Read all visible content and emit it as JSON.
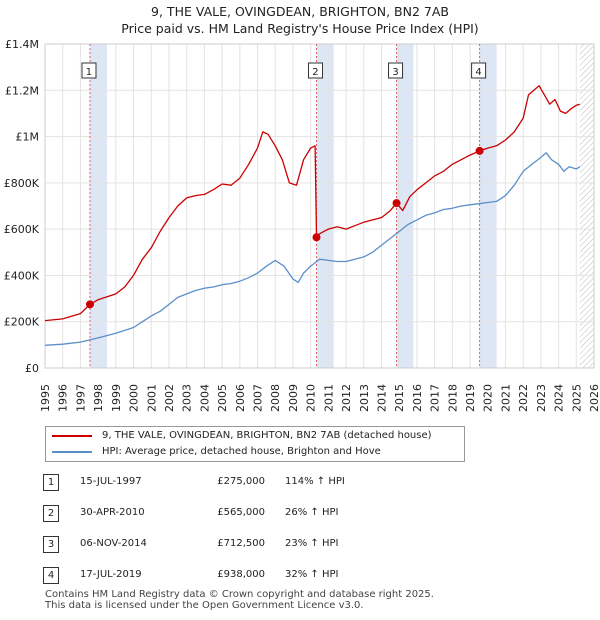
{
  "title_line1": "9, THE VALE, OVINGDEAN, BRIGHTON, BN2 7AB",
  "title_line2": "Price paid vs. HM Land Registry's House Price Index (HPI)",
  "legend": {
    "property_label": "9, THE VALE, OVINGDEAN, BRIGHTON, BN2 7AB (detached house)",
    "hpi_label": "HPI: Average price, detached house, Brighton and Hove"
  },
  "sales": [
    {
      "num": "1",
      "date": "15-JUL-1997",
      "price": "£275,000",
      "hpi": "114% ↑ HPI",
      "x": 1997.54,
      "y": 275000
    },
    {
      "num": "2",
      "date": "30-APR-2010",
      "price": "£565,000",
      "hpi": "26% ↑ HPI",
      "x": 2010.33,
      "y": 565000
    },
    {
      "num": "3",
      "date": "06-NOV-2014",
      "price": "£712,500",
      "hpi": "23% ↑ HPI",
      "x": 2014.85,
      "y": 712500
    },
    {
      "num": "4",
      "date": "17-JUL-2019",
      "price": "£938,000",
      "hpi": "32% ↑ HPI",
      "x": 2019.54,
      "y": 938000
    }
  ],
  "footer_line1": "Contains HM Land Registry data © Crown copyright and database right 2025.",
  "footer_line2": "This data is licensed under the Open Government Licence v3.0.",
  "colors": {
    "property": "#cc0000",
    "hpi": "#5b8fc9",
    "shade": "#dce6f5",
    "marker_line": "#e06060"
  },
  "chart_data": {
    "type": "line",
    "title": "9, THE VALE, OVINGDEAN, BRIGHTON, BN2 7AB",
    "subtitle": "Price paid vs. HM Land Registry's House Price Index (HPI)",
    "xlim": [
      1995,
      2026
    ],
    "ylim": [
      0,
      1400000
    ],
    "x_ticks": [
      1995,
      1996,
      1997,
      1998,
      1999,
      2000,
      2001,
      2002,
      2003,
      2004,
      2005,
      2006,
      2007,
      2008,
      2009,
      2010,
      2011,
      2012,
      2013,
      2014,
      2015,
      2016,
      2017,
      2018,
      2019,
      2020,
      2021,
      2022,
      2023,
      2024,
      2025,
      2026
    ],
    "y_ticks": [
      0,
      200000,
      400000,
      600000,
      800000,
      1000000,
      1200000,
      1400000
    ],
    "y_tick_labels": [
      "£0",
      "£200K",
      "£400K",
      "£600K",
      "£800K",
      "£1M",
      "£1.2M",
      "£1.4M"
    ],
    "shaded_spans": [
      [
        1997.54,
        1998.5
      ],
      [
        2010.33,
        2011.3
      ],
      [
        2014.85,
        2015.8
      ],
      [
        2019.54,
        2020.5
      ]
    ],
    "hatched_from": 2025.2,
    "series": [
      {
        "name": "9, THE VALE, OVINGDEAN, BRIGHTON, BN2 7AB (detached house)",
        "color": "#cc0000",
        "x": [
          1995,
          1996,
          1997,
          1997.54,
          1998,
          1999,
          1999.5,
          2000,
          2000.5,
          2001,
          2001.5,
          2002,
          2002.5,
          2003,
          2003.5,
          2004,
          2004.5,
          2005,
          2005.5,
          2006,
          2006.5,
          2007,
          2007.3,
          2007.6,
          2008,
          2008.4,
          2008.8,
          2009.2,
          2009.6,
          2010,
          2010.25,
          2010.33,
          2010.5,
          2011,
          2011.5,
          2012,
          2012.5,
          2013,
          2013.5,
          2014,
          2014.5,
          2014.85,
          2015.2,
          2015.6,
          2016,
          2016.5,
          2017,
          2017.5,
          2018,
          2018.5,
          2019,
          2019.54,
          2020,
          2020.5,
          2021,
          2021.5,
          2022,
          2022.3,
          2022.6,
          2022.9,
          2023.2,
          2023.5,
          2023.8,
          2024.1,
          2024.4,
          2024.7,
          2025,
          2025.2
        ],
        "y": [
          205000,
          212000,
          235000,
          275000,
          295000,
          320000,
          350000,
          400000,
          470000,
          520000,
          590000,
          650000,
          700000,
          735000,
          745000,
          750000,
          770000,
          795000,
          790000,
          820000,
          880000,
          950000,
          1020000,
          1010000,
          960000,
          900000,
          800000,
          790000,
          900000,
          950000,
          960000,
          565000,
          580000,
          600000,
          610000,
          600000,
          615000,
          630000,
          640000,
          650000,
          680000,
          712500,
          680000,
          740000,
          770000,
          800000,
          830000,
          850000,
          880000,
          900000,
          920000,
          938000,
          950000,
          960000,
          985000,
          1020000,
          1080000,
          1180000,
          1200000,
          1220000,
          1180000,
          1140000,
          1160000,
          1110000,
          1100000,
          1120000,
          1135000,
          1140000
        ]
      },
      {
        "name": "HPI: Average price, detached house, Brighton and Hove",
        "color": "#5b8fc9",
        "x": [
          1995,
          1996,
          1997,
          1998,
          1999,
          2000,
          2000.5,
          2001,
          2001.5,
          2002,
          2002.5,
          2003,
          2003.5,
          2004,
          2004.5,
          2005,
          2005.5,
          2006,
          2006.5,
          2007,
          2007.5,
          2008,
          2008.5,
          2009,
          2009.3,
          2009.6,
          2010,
          2010.5,
          2011,
          2011.5,
          2012,
          2012.5,
          2013,
          2013.5,
          2014,
          2014.5,
          2015,
          2015.5,
          2016,
          2016.5,
          2017,
          2017.5,
          2018,
          2018.5,
          2019,
          2019.5,
          2020,
          2020.5,
          2021,
          2021.5,
          2022,
          2022.5,
          2023,
          2023.3,
          2023.6,
          2024,
          2024.3,
          2024.6,
          2025,
          2025.2
        ],
        "y": [
          98000,
          103000,
          112000,
          130000,
          150000,
          175000,
          200000,
          225000,
          245000,
          275000,
          305000,
          320000,
          335000,
          345000,
          350000,
          360000,
          365000,
          375000,
          390000,
          410000,
          440000,
          465000,
          440000,
          385000,
          370000,
          410000,
          440000,
          470000,
          465000,
          460000,
          460000,
          470000,
          480000,
          500000,
          530000,
          560000,
          590000,
          620000,
          640000,
          660000,
          670000,
          685000,
          690000,
          700000,
          705000,
          710000,
          715000,
          720000,
          745000,
          790000,
          850000,
          880000,
          910000,
          930000,
          900000,
          880000,
          850000,
          870000,
          860000,
          870000
        ]
      }
    ]
  }
}
